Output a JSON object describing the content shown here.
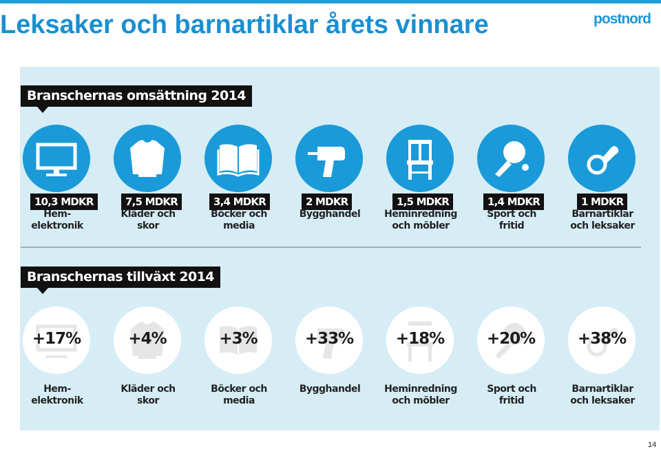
{
  "slide": {
    "title": "Leksaker och barnartiklar årets vinnare",
    "logo": "postnord",
    "page_number": "14"
  },
  "colors": {
    "accent": "#1a9ad9",
    "panel": "#d6edf6",
    "heading_bg": "#111111"
  },
  "section1": {
    "heading": "Branschernas omsättning 2014"
  },
  "section2": {
    "heading": "Branschernas tillväxt 2014"
  },
  "industries": [
    {
      "icon": "tv-icon",
      "revenue": "10,3 MDKR",
      "growth": "+17%",
      "line1": "Hem-",
      "line2": "elektronik"
    },
    {
      "icon": "sweater-icon",
      "revenue": "7,5 MDKR",
      "growth": "+4%",
      "line1": "Kläder och",
      "line2": "skor"
    },
    {
      "icon": "book-icon",
      "revenue": "3,4 MDKR",
      "growth": "+3%",
      "line1": "Böcker och",
      "line2": "media"
    },
    {
      "icon": "drill-icon",
      "revenue": "2 MDKR",
      "growth": "+33%",
      "line1": "Bygghandel",
      "line2": ""
    },
    {
      "icon": "chair-icon",
      "revenue": "1,5 MDKR",
      "growth": "+18%",
      "line1": "Heminredning",
      "line2": "och möbler"
    },
    {
      "icon": "ping-pong-icon",
      "revenue": "1,4 MDKR",
      "growth": "+20%",
      "line1": "Sport och",
      "line2": "fritid"
    },
    {
      "icon": "pacifier-icon",
      "revenue": "1 MDKR",
      "growth": "+38%",
      "line1": "Barnartiklar",
      "line2": "och leksaker"
    }
  ]
}
